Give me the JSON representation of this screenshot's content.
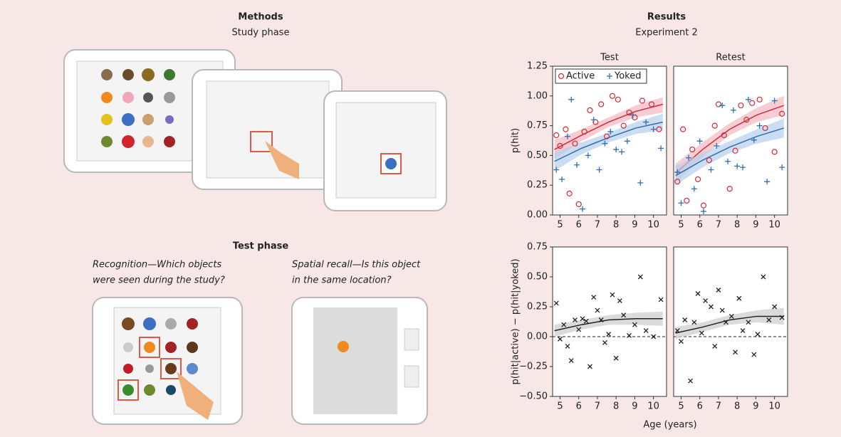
{
  "methods": {
    "title": "Methods",
    "study_phase": "Study phase",
    "test_phase": "Test phase",
    "recognition": [
      "Recognition—Which objects",
      "were seen during the study?"
    ],
    "spatial_recall": [
      "Spatial recall—Is this object",
      "in the same location?"
    ]
  },
  "results": {
    "title": "Results",
    "subtitle": "Experiment 2",
    "xlabel": "Age (years)"
  },
  "chart_data": [
    {
      "type": "scatter",
      "title": "Test",
      "ylabel": "p(hit)",
      "legend": "top-left",
      "xlim": [
        4.6,
        10.7
      ],
      "xticks": [
        5,
        6,
        7,
        8,
        9,
        10
      ],
      "ylim": [
        0,
        1.25
      ],
      "yticks": [
        {
          "value": 0,
          "label": "0.00"
        },
        {
          "value": 0.25,
          "label": "0.25"
        },
        {
          "value": 0.5,
          "label": "0.50"
        },
        {
          "value": 0.75,
          "label": "0.75"
        },
        {
          "value": 1,
          "label": "1.00"
        },
        {
          "value": 1.25,
          "label": "1.25"
        }
      ],
      "series": [
        {
          "name": "Active",
          "color": "#d42a3a",
          "marker": "o",
          "x": [
            4.8,
            5.0,
            5.3,
            5.5,
            5.8,
            6.0,
            6.3,
            6.6,
            6.9,
            7.2,
            7.5,
            7.8,
            8.1,
            8.4,
            8.7,
            9.0,
            9.4,
            9.9,
            10.3
          ],
          "values": [
            0.67,
            0.58,
            0.72,
            0.18,
            0.6,
            0.09,
            0.7,
            0.88,
            0.78,
            0.93,
            0.66,
            1.0,
            0.97,
            0.75,
            0.86,
            0.82,
            0.96,
            0.93,
            0.72
          ]
        },
        {
          "name": "Yoked",
          "color": "#2f6fb3",
          "marker": "+",
          "x": [
            4.8,
            5.1,
            5.4,
            5.6,
            5.9,
            6.2,
            6.5,
            6.8,
            7.1,
            7.4,
            7.7,
            8.0,
            8.3,
            8.6,
            8.9,
            9.3,
            9.6,
            10.0,
            10.4
          ],
          "values": [
            0.38,
            0.3,
            0.66,
            0.97,
            0.42,
            0.05,
            0.5,
            0.8,
            0.38,
            0.6,
            0.7,
            0.55,
            0.53,
            0.62,
            0.84,
            0.27,
            0.78,
            0.72,
            0.56
          ]
        }
      ],
      "fits": [
        {
          "color": "#d42a3a",
          "band_color": "#f2b8bf",
          "x": [
            4.7,
            6.15,
            7.6,
            9.05,
            10.5
          ],
          "values": [
            0.55,
            0.67,
            0.78,
            0.87,
            0.93
          ],
          "lower": [
            0.47,
            0.62,
            0.74,
            0.82,
            0.86
          ],
          "upper": [
            0.63,
            0.72,
            0.82,
            0.92,
            0.99
          ]
        },
        {
          "color": "#2f6fb3",
          "band_color": "#b5cfea",
          "x": [
            4.7,
            6.15,
            7.6,
            9.05,
            10.5
          ],
          "values": [
            0.45,
            0.56,
            0.65,
            0.73,
            0.78
          ],
          "lower": [
            0.37,
            0.51,
            0.61,
            0.68,
            0.71
          ],
          "upper": [
            0.53,
            0.61,
            0.69,
            0.78,
            0.85
          ]
        }
      ]
    },
    {
      "type": "scatter",
      "title": "Retest",
      "xlim": [
        4.6,
        10.7
      ],
      "xticks": [
        5,
        6,
        7,
        8,
        9,
        10
      ],
      "ylim": [
        0,
        1.25
      ],
      "series": [
        {
          "color": "#d42a3a",
          "marker": "o",
          "x": [
            4.8,
            5.1,
            5.3,
            5.6,
            5.9,
            6.2,
            6.5,
            6.8,
            7.0,
            7.3,
            7.6,
            7.9,
            8.2,
            8.5,
            8.8,
            9.2,
            9.5,
            10.0,
            10.4
          ],
          "values": [
            0.28,
            0.72,
            0.12,
            0.55,
            0.3,
            0.08,
            0.46,
            0.75,
            0.93,
            0.67,
            0.22,
            0.54,
            0.92,
            0.8,
            0.94,
            0.97,
            0.73,
            0.53,
            0.85
          ]
        },
        {
          "color": "#2f6fb3",
          "marker": "+",
          "x": [
            4.8,
            5.0,
            5.4,
            5.7,
            6.0,
            6.2,
            6.6,
            6.9,
            7.2,
            7.5,
            7.8,
            8.0,
            8.3,
            8.6,
            8.9,
            9.2,
            9.6,
            10.0,
            10.4
          ],
          "values": [
            0.36,
            0.1,
            0.48,
            0.22,
            0.62,
            0.03,
            0.38,
            0.58,
            0.92,
            0.45,
            0.88,
            0.41,
            0.4,
            0.97,
            0.63,
            0.75,
            0.28,
            0.96,
            0.4
          ]
        }
      ],
      "fits": [
        {
          "color": "#d42a3a",
          "band_color": "#f2b8bf",
          "x": [
            4.7,
            6.15,
            7.6,
            9.05,
            10.5
          ],
          "values": [
            0.35,
            0.55,
            0.72,
            0.84,
            0.92
          ],
          "lower": [
            0.27,
            0.49,
            0.67,
            0.78,
            0.84
          ],
          "upper": [
            0.43,
            0.61,
            0.77,
            0.9,
            1.0
          ]
        },
        {
          "color": "#2f6fb3",
          "band_color": "#b5cfea",
          "x": [
            4.7,
            6.15,
            7.6,
            9.05,
            10.5
          ],
          "values": [
            0.33,
            0.46,
            0.57,
            0.66,
            0.73
          ],
          "lower": [
            0.25,
            0.4,
            0.52,
            0.6,
            0.65
          ],
          "upper": [
            0.41,
            0.52,
            0.62,
            0.72,
            0.81
          ]
        }
      ]
    },
    {
      "type": "scatter",
      "ylabel": "p(hit|active) − p(hit|yoked)",
      "xlim": [
        4.6,
        10.7
      ],
      "xticks": [
        5,
        6,
        7,
        8,
        9,
        10
      ],
      "ylim": [
        -0.5,
        0.75
      ],
      "yticks": [
        {
          "value": -0.5,
          "label": "−0.50"
        },
        {
          "value": -0.25,
          "label": "−0.25"
        },
        {
          "value": 0,
          "label": "0.00"
        },
        {
          "value": 0.25,
          "label": "0.25"
        },
        {
          "value": 0.5,
          "label": "0.50"
        },
        {
          "value": 0.75,
          "label": "0.75"
        }
      ],
      "hline": 0,
      "series": [
        {
          "color": "#222222",
          "marker": "x",
          "x": [
            4.8,
            5.0,
            5.2,
            5.4,
            5.6,
            5.8,
            6.0,
            6.2,
            6.4,
            6.6,
            6.8,
            7.0,
            7.2,
            7.4,
            7.6,
            7.8,
            8.0,
            8.2,
            8.4,
            8.7,
            9.0,
            9.3,
            9.6,
            10.0,
            10.4
          ],
          "values": [
            0.28,
            -0.02,
            0.1,
            -0.08,
            -0.2,
            0.14,
            0.06,
            0.15,
            0.13,
            -0.25,
            0.33,
            0.22,
            0.14,
            -0.05,
            0.02,
            0.35,
            -0.18,
            0.3,
            0.18,
            0.01,
            0.1,
            0.5,
            0.05,
            0.0,
            0.31
          ]
        }
      ],
      "fits": [
        {
          "color": "#222222",
          "band_color": "#cccccc",
          "x": [
            4.7,
            6.15,
            7.6,
            9.05,
            10.5
          ],
          "values": [
            0.05,
            0.1,
            0.14,
            0.15,
            0.15
          ],
          "lower": [
            0.0,
            0.06,
            0.1,
            0.1,
            0.09
          ],
          "upper": [
            0.1,
            0.14,
            0.18,
            0.2,
            0.21
          ]
        }
      ]
    },
    {
      "type": "scatter",
      "xlim": [
        4.6,
        10.7
      ],
      "xticks": [
        5,
        6,
        7,
        8,
        9,
        10
      ],
      "ylim": [
        -0.5,
        0.75
      ],
      "hline": 0,
      "series": [
        {
          "color": "#222222",
          "marker": "x",
          "x": [
            4.8,
            5.0,
            5.2,
            5.5,
            5.7,
            5.9,
            6.1,
            6.3,
            6.6,
            6.8,
            7.0,
            7.2,
            7.4,
            7.7,
            7.9,
            8.1,
            8.3,
            8.6,
            8.9,
            9.1,
            9.4,
            9.7,
            10.0,
            10.4
          ],
          "values": [
            0.05,
            -0.04,
            0.14,
            -0.37,
            0.12,
            0.36,
            0.03,
            0.3,
            0.25,
            -0.08,
            0.39,
            0.22,
            0.12,
            0.17,
            -0.13,
            0.32,
            0.05,
            0.12,
            -0.15,
            0.02,
            0.5,
            0.14,
            0.25,
            0.16
          ]
        }
      ],
      "fits": [
        {
          "color": "#222222",
          "band_color": "#cccccc",
          "x": [
            4.7,
            6.15,
            7.6,
            9.05,
            10.5
          ],
          "values": [
            0.03,
            0.08,
            0.14,
            0.17,
            0.17
          ],
          "lower": [
            -0.02,
            0.04,
            0.1,
            0.12,
            0.1
          ],
          "upper": [
            0.08,
            0.12,
            0.18,
            0.22,
            0.24
          ]
        }
      ]
    }
  ]
}
